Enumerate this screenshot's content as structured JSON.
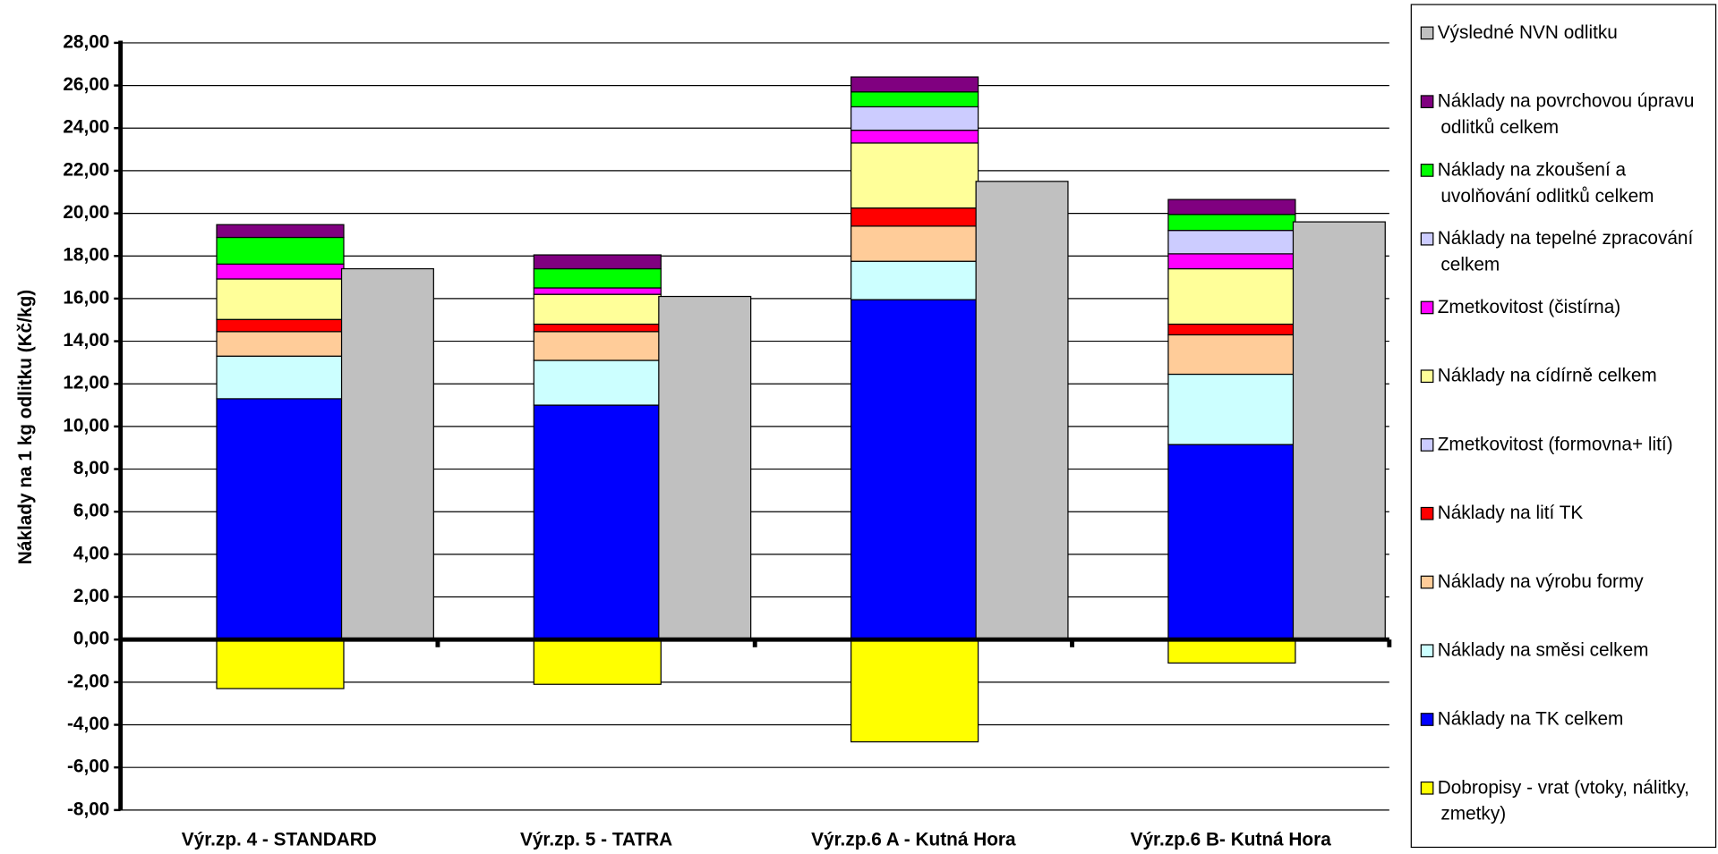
{
  "chart_data": {
    "type": "bar",
    "y_label": "Náklady na 1 kg odlitku (Kč/kg)",
    "categories": [
      "Výr.zp. 4 - STANDARD",
      "Výr.zp. 5 - TATRA",
      "Výr.zp.6 A - Kutná Hora",
      "Výr.zp.6 B- Kutná Hora"
    ],
    "series": [
      {
        "name": "Výsledné NVN odlitku",
        "color": "#c0c0c0",
        "stacked": false,
        "values": [
          17.4,
          16.1,
          21.5,
          19.6
        ]
      },
      {
        "name": "Náklady na povrchovou úpravu odlitků celkem",
        "color": "#800080",
        "values": [
          0.6,
          0.65,
          0.7,
          0.7
        ]
      },
      {
        "name": "Náklady na zkoušení a uvolňování odlitků celkem",
        "color": "#00ff00",
        "values": [
          1.25,
          0.9,
          0.7,
          0.75
        ]
      },
      {
        "name": "Náklady na tepelné zpracování celkem",
        "color": "#ccccff",
        "values": [
          0,
          0,
          1.1,
          1.1
        ]
      },
      {
        "name": "Zmetkovitost (čistírna)",
        "color": "#ff00ff",
        "values": [
          0.7,
          0.3,
          0.6,
          0.7
        ]
      },
      {
        "name": "Náklady na cídírně celkem",
        "color": "#ffff99",
        "values": [
          1.9,
          1.4,
          3.05,
          2.6
        ]
      },
      {
        "name": "Zmetkovitost (formovna+ lití)",
        "color": "#ccccff",
        "values": [
          0,
          0,
          0,
          0
        ]
      },
      {
        "name": "Náklady na lití TK",
        "color": "#ff0000",
        "values": [
          0.57,
          0.35,
          0.85,
          0.5
        ]
      },
      {
        "name": "Náklady na výrobu formy",
        "color": "#ffcc99",
        "values": [
          1.15,
          1.35,
          1.65,
          1.85
        ]
      },
      {
        "name": "Náklady na směsi celkem",
        "color": "#ccffff",
        "values": [
          2.0,
          2.1,
          1.8,
          3.3
        ]
      },
      {
        "name": "Náklady na TK celkem",
        "color": "#0000ff",
        "values": [
          11.3,
          11.0,
          15.95,
          9.15
        ]
      },
      {
        "name": "Dobropisy - vrat (vtoky, nálitky, zmetky)",
        "color": "#ffff00",
        "values": [
          -2.3,
          -2.1,
          -4.8,
          -1.1
        ]
      }
    ],
    "ylim": [
      -8,
      28
    ],
    "yticks": [
      {
        "value": -8,
        "label": "-8,00"
      },
      {
        "value": -6,
        "label": "-6,00"
      },
      {
        "value": -4,
        "label": "-4,00"
      },
      {
        "value": -2,
        "label": "-2,00"
      },
      {
        "value": 0,
        "label": "0,00"
      },
      {
        "value": 2,
        "label": "2,00"
      },
      {
        "value": 4,
        "label": "4,00"
      },
      {
        "value": 6,
        "label": "6,00"
      },
      {
        "value": 8,
        "label": "8,00"
      },
      {
        "value": 10,
        "label": "10,00"
      },
      {
        "value": 12,
        "label": "12,00"
      },
      {
        "value": 14,
        "label": "14,00"
      },
      {
        "value": 16,
        "label": "16,00"
      },
      {
        "value": 18,
        "label": "18,00"
      },
      {
        "value": 20,
        "label": "20,00"
      },
      {
        "value": 22,
        "label": "22,00"
      },
      {
        "value": 24,
        "label": "24,00"
      },
      {
        "value": 26,
        "label": "26,00"
      },
      {
        "value": 28,
        "label": "28,00"
      }
    ],
    "grid": true,
    "legend": "right"
  }
}
